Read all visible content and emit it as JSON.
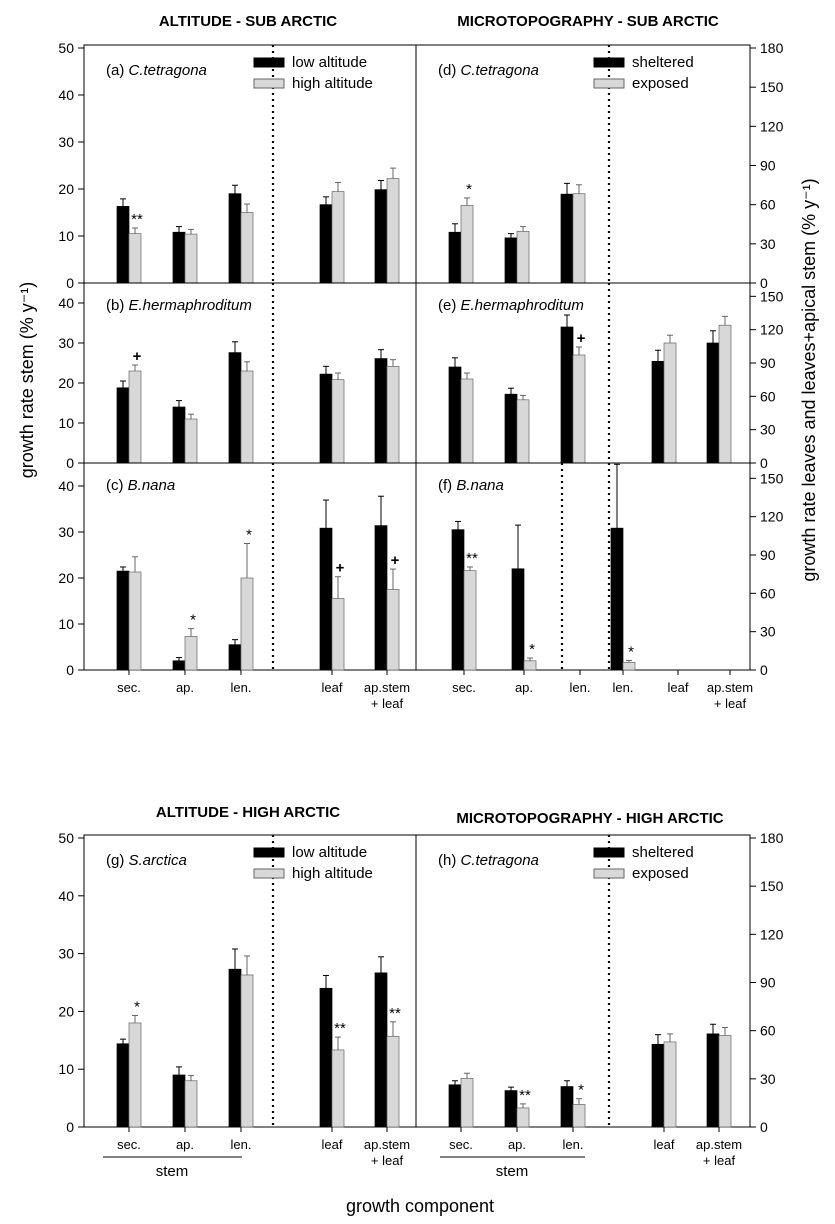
{
  "figure_title_labels": {
    "top_left": "ALTITUDE - SUB ARCTIC",
    "top_right": "MICROTOPOGRAPHY - SUB ARCTIC",
    "bottom_left": "ALTITUDE - HIGH ARCTIC",
    "bottom_right": "MICROTOPOGRAPHY - HIGH ARCTIC"
  },
  "axis_labels": {
    "y_left": "growth rate stem (% y⁻¹)",
    "y_right": "growth rate leaves and leaves+apical stem (% y⁻¹)",
    "x": "growth component",
    "stem_group": "stem"
  },
  "legends": {
    "altitude": [
      "low altitude",
      "high altitude"
    ],
    "microtopography": [
      "sheltered",
      "exposed"
    ]
  },
  "colors": {
    "bar_a": "#000000",
    "bar_b": "#d8d8d8",
    "bar_b_stroke": "#666666"
  },
  "chart_data": [
    {
      "type": "bar",
      "panel": "(a)",
      "species": "C.tetragona",
      "categories": [
        "sec.",
        "ap.",
        "len.",
        "leaf",
        "ap.stem + leaf"
      ],
      "axis": [
        "left",
        "left",
        "left",
        "right",
        "right"
      ],
      "ylim_left": [
        0,
        50
      ],
      "ylim_right": [
        0,
        180
      ],
      "series": [
        {
          "name": "low altitude",
          "values": [
            16.3,
            10.8,
            19,
            60,
            71.5
          ],
          "errors": [
            1.6,
            1.2,
            1.8,
            6,
            7
          ]
        },
        {
          "name": "high altitude",
          "values": [
            10.5,
            10.4,
            15,
            70,
            80
          ],
          "errors": [
            1.2,
            1.0,
            1.8,
            7,
            8
          ]
        }
      ],
      "annotations": [
        {
          "category": "sec.",
          "text": "**"
        }
      ]
    },
    {
      "type": "bar",
      "panel": "(d)",
      "species": "C.tetragona",
      "categories": [
        "sec.",
        "ap.",
        "len.",
        "leaf",
        "ap.stem + leaf"
      ],
      "axis": [
        "left",
        "left",
        "left",
        "right",
        "right"
      ],
      "ylim_left": [
        0,
        50
      ],
      "ylim_right": [
        0,
        180
      ],
      "series": [
        {
          "name": "sheltered",
          "values": [
            10.8,
            9.6,
            18.9,
            null,
            null
          ],
          "errors": [
            1.8,
            0.9,
            2.3,
            null,
            null
          ]
        },
        {
          "name": "exposed",
          "values": [
            16.5,
            11,
            19,
            null,
            null
          ],
          "errors": [
            1.6,
            1.0,
            1.9,
            null,
            null
          ]
        }
      ],
      "annotations": [
        {
          "category": "sec.",
          "text": "*"
        }
      ]
    },
    {
      "type": "bar",
      "panel": "(b)",
      "species": "E.hermaphroditum",
      "categories": [
        "sec.",
        "ap.",
        "len.",
        "leaf",
        "ap.stem + leaf"
      ],
      "axis": [
        "left",
        "left",
        "left",
        "right",
        "right"
      ],
      "ylim_left": [
        0,
        45
      ],
      "ylim_right": [
        0,
        162
      ],
      "series": [
        {
          "name": "low altitude",
          "values": [
            18.8,
            14,
            27.6,
            80,
            94
          ],
          "errors": [
            1.7,
            1.6,
            2.7,
            7,
            8
          ]
        },
        {
          "name": "high altitude",
          "values": [
            23,
            11,
            23,
            75,
            87
          ],
          "errors": [
            1.5,
            1.2,
            2.3,
            6,
            6
          ]
        }
      ],
      "annotations": [
        {
          "category": "sec.",
          "text": "+"
        }
      ]
    },
    {
      "type": "bar",
      "panel": "(e)",
      "species": "E.hermaphroditum",
      "categories": [
        "sec.",
        "ap.",
        "len.",
        "leaf",
        "ap.stem + leaf"
      ],
      "axis": [
        "left",
        "left",
        "left",
        "right",
        "right"
      ],
      "ylim_left": [
        0,
        45
      ],
      "ylim_right": [
        0,
        162
      ],
      "series": [
        {
          "name": "sheltered",
          "values": [
            24,
            17.2,
            34,
            91.5,
            108
          ],
          "errors": [
            2.3,
            1.5,
            3.0,
            10,
            11
          ]
        },
        {
          "name": "exposed",
          "values": [
            21,
            15.8,
            27,
            108,
            124
          ],
          "errors": [
            1.5,
            1.1,
            2.0,
            7,
            8
          ]
        }
      ],
      "annotations": [
        {
          "category": "len.",
          "text": "+"
        }
      ]
    },
    {
      "type": "bar",
      "panel": "(c)",
      "species": "B.nana",
      "categories": [
        "sec.",
        "ap.",
        "len.",
        "leaf",
        "ap.stem + leaf"
      ],
      "axis": [
        "left",
        "left",
        "left",
        "right",
        "right"
      ],
      "ylim_left": [
        0,
        45
      ],
      "ylim_right": [
        0,
        162
      ],
      "series": [
        {
          "name": "low altitude",
          "values": [
            21.5,
            2,
            5.5,
            111,
            113
          ],
          "errors": [
            0.9,
            0.7,
            1.1,
            22,
            23
          ]
        },
        {
          "name": "high altitude",
          "values": [
            21.3,
            7.3,
            20,
            56,
            63
          ],
          "errors": [
            3.3,
            1.7,
            7.5,
            17,
            16
          ]
        }
      ],
      "annotations": [
        {
          "category": "ap.",
          "text": "*"
        },
        {
          "category": "len.",
          "text": "*"
        },
        {
          "category": "leaf",
          "text": "+"
        },
        {
          "category": "ap.stem + leaf",
          "text": "+"
        }
      ]
    },
    {
      "type": "bar",
      "panel": "(f)",
      "species": "B.nana",
      "categories": [
        "sec.",
        "ap.",
        "len.",
        "len.",
        "leaf",
        "ap.stem + leaf"
      ],
      "axis": [
        "left",
        "left",
        "left",
        "right",
        "right",
        "right"
      ],
      "ylim_left": [
        0,
        45
      ],
      "ylim_right": [
        0,
        162
      ],
      "series": [
        {
          "name": "sheltered",
          "values": [
            30.5,
            22,
            null,
            111,
            null,
            null
          ],
          "errors": [
            1.8,
            9.5,
            null,
            50,
            null,
            null
          ]
        },
        {
          "name": "exposed",
          "values": [
            21.6,
            2,
            null,
            6,
            null,
            null
          ],
          "errors": [
            0.8,
            0.6,
            null,
            1.5,
            null,
            null
          ]
        }
      ],
      "annotations": [
        {
          "category": "sec.",
          "text": "**"
        },
        {
          "category": "ap.",
          "text": "*"
        },
        {
          "category": "len.",
          "index": 3,
          "text": "*"
        }
      ]
    },
    {
      "type": "bar",
      "panel": "(g)",
      "species": "S.arctica",
      "categories": [
        "sec.",
        "ap.",
        "len.",
        "leaf",
        "ap.stem + leaf"
      ],
      "axis": [
        "left",
        "left",
        "left",
        "right",
        "right"
      ],
      "ylim_left": [
        0,
        50
      ],
      "ylim_right": [
        0,
        180
      ],
      "series": [
        {
          "name": "low altitude",
          "values": [
            14.4,
            9,
            27.3,
            86.4,
            96
          ],
          "errors": [
            0.8,
            1.4,
            3.5,
            8,
            10
          ]
        },
        {
          "name": "high altitude",
          "values": [
            18,
            8,
            26.3,
            48,
            56.5
          ],
          "errors": [
            1.3,
            0.9,
            3.3,
            8,
            9
          ]
        }
      ],
      "annotations": [
        {
          "category": "sec.",
          "text": "*"
        },
        {
          "category": "leaf",
          "text": "**"
        },
        {
          "category": "ap.stem + leaf",
          "text": "**"
        }
      ]
    },
    {
      "type": "bar",
      "panel": "(h)",
      "species": "C.tetragona",
      "categories": [
        "sec.",
        "ap.",
        "len.",
        "leaf",
        "ap.stem + leaf"
      ],
      "axis": [
        "left",
        "left",
        "left",
        "right",
        "right"
      ],
      "ylim_left": [
        0,
        50
      ],
      "ylim_right": [
        0,
        180
      ],
      "series": [
        {
          "name": "sheltered",
          "values": [
            7.3,
            6.3,
            7,
            51.5,
            58
          ],
          "errors": [
            0.7,
            0.6,
            1.0,
            6,
            6
          ]
        },
        {
          "name": "exposed",
          "values": [
            8.4,
            3.3,
            3.9,
            53,
            57
          ],
          "errors": [
            0.9,
            0.7,
            1.0,
            5,
            5
          ]
        }
      ],
      "annotations": [
        {
          "category": "ap.",
          "text": "**"
        },
        {
          "category": "len.",
          "text": "*"
        }
      ]
    }
  ]
}
